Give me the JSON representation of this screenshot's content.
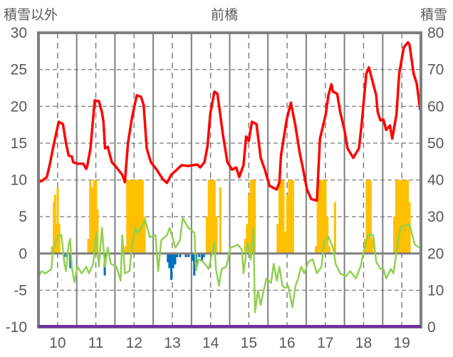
{
  "chart_data": {
    "type": "bar+line",
    "title": "前橋",
    "left_axis_label": "積雪以外",
    "right_axis_label": "積雪",
    "xlim": [
      9.5,
      19.5
    ],
    "ylim_left": [
      -10,
      30
    ],
    "ylim_right": [
      0,
      80
    ],
    "x_ticks": [
      "10",
      "11",
      "12",
      "13",
      "14",
      "15",
      "16",
      "17",
      "18",
      "19"
    ],
    "y_ticks_left": [
      "30",
      "25",
      "20",
      "15",
      "10",
      "5",
      "0",
      "-5",
      "-10"
    ],
    "y_ticks_right": [
      "80",
      "70",
      "60",
      "50",
      "40",
      "30",
      "20",
      "10",
      "0"
    ],
    "grid": true,
    "colors": {
      "red_line": "#ff0000",
      "green_line": "#92d050",
      "bar_positive": "#ffc000",
      "bar_negative": "#0070c0",
      "snow_line": "#7030a0",
      "axis": "#7f7f7f"
    },
    "series": [
      {
        "name": "red_line",
        "axis": "left",
        "points": [
          [
            9.5,
            9.7
          ],
          [
            9.6,
            9.9
          ],
          [
            9.72,
            10.4
          ],
          [
            9.8,
            12.2
          ],
          [
            9.88,
            14.3
          ],
          [
            9.95,
            16
          ],
          [
            10.03,
            17.9
          ],
          [
            10.14,
            17.6
          ],
          [
            10.22,
            15.0
          ],
          [
            10.29,
            13.3
          ],
          [
            10.37,
            13.2
          ],
          [
            10.41,
            12.4
          ],
          [
            10.52,
            12.2
          ],
          [
            10.67,
            12.2
          ],
          [
            10.75,
            11.5
          ],
          [
            10.78,
            12.0
          ],
          [
            10.86,
            14.3
          ],
          [
            10.97,
            20.8
          ],
          [
            11.08,
            20.7
          ],
          [
            11.16,
            19.2
          ],
          [
            11.2,
            17.9
          ],
          [
            11.24,
            14.3
          ],
          [
            11.31,
            14.5
          ],
          [
            11.42,
            12.4
          ],
          [
            11.54,
            11.7
          ],
          [
            11.69,
            10.7
          ],
          [
            11.76,
            9.7
          ],
          [
            11.84,
            15.0
          ],
          [
            11.95,
            18.6
          ],
          [
            12.07,
            21.5
          ],
          [
            12.18,
            21.3
          ],
          [
            12.25,
            20.2
          ],
          [
            12.33,
            14.3
          ],
          [
            12.44,
            12.4
          ],
          [
            12.59,
            11.4
          ],
          [
            12.75,
            10.1
          ],
          [
            12.86,
            9.6
          ],
          [
            12.97,
            10.7
          ],
          [
            13.12,
            11.4
          ],
          [
            13.24,
            12.0
          ],
          [
            13.42,
            11.9
          ],
          [
            13.65,
            12.1
          ],
          [
            13.73,
            11.7
          ],
          [
            13.84,
            12.4
          ],
          [
            13.92,
            14.6
          ],
          [
            13.99,
            18.9
          ],
          [
            14.1,
            22.0
          ],
          [
            14.18,
            21.7
          ],
          [
            14.33,
            15.9
          ],
          [
            14.44,
            12.4
          ],
          [
            14.56,
            11.4
          ],
          [
            14.67,
            11.7
          ],
          [
            14.75,
            10.4
          ],
          [
            14.86,
            12.0
          ],
          [
            14.93,
            15.9
          ],
          [
            15.0,
            15.3
          ],
          [
            15.08,
            17.9
          ],
          [
            15.2,
            17.6
          ],
          [
            15.31,
            13.0
          ],
          [
            15.42,
            11.4
          ],
          [
            15.54,
            9.2
          ],
          [
            15.73,
            8.7
          ],
          [
            15.8,
            9.7
          ],
          [
            15.84,
            13.3
          ],
          [
            15.99,
            18.2
          ],
          [
            16.1,
            20.5
          ],
          [
            16.22,
            17.3
          ],
          [
            16.33,
            13.7
          ],
          [
            16.41,
            11.7
          ],
          [
            16.52,
            8.7
          ],
          [
            16.63,
            7.4
          ],
          [
            16.78,
            7.2
          ],
          [
            16.86,
            15.6
          ],
          [
            17.01,
            18.9
          ],
          [
            17.08,
            21.5
          ],
          [
            17.16,
            23.0
          ],
          [
            17.2,
            22.0
          ],
          [
            17.31,
            21.7
          ],
          [
            17.39,
            19.2
          ],
          [
            17.5,
            16.8
          ],
          [
            17.58,
            14.3
          ],
          [
            17.73,
            13.0
          ],
          [
            17.88,
            14.3
          ],
          [
            17.95,
            17.6
          ],
          [
            18.07,
            24.4
          ],
          [
            18.14,
            25.3
          ],
          [
            18.33,
            21.5
          ],
          [
            18.37,
            19.2
          ],
          [
            18.44,
            18.1
          ],
          [
            18.52,
            18.2
          ],
          [
            18.59,
            16.8
          ],
          [
            18.69,
            17.4
          ],
          [
            18.75,
            15.6
          ],
          [
            18.86,
            18.9
          ],
          [
            18.93,
            24.4
          ],
          [
            19.05,
            28.0
          ],
          [
            19.16,
            28.7
          ],
          [
            19.2,
            28.4
          ],
          [
            19.31,
            24.4
          ],
          [
            19.39,
            23.1
          ],
          [
            19.48,
            19.5
          ]
        ]
      },
      {
        "name": "green_line",
        "axis": "left",
        "points": [
          [
            9.5,
            -3.2
          ],
          [
            9.58,
            -2.4
          ],
          [
            9.69,
            -2.7
          ],
          [
            9.76,
            -2.4
          ],
          [
            9.84,
            -2.1
          ],
          [
            9.88,
            0.5
          ],
          [
            9.95,
            1.5
          ],
          [
            10.03,
            2.5
          ],
          [
            10.1,
            2.5
          ],
          [
            10.18,
            -1.4
          ],
          [
            10.22,
            -2.4
          ],
          [
            10.29,
            1.2
          ],
          [
            10.33,
            2.0
          ],
          [
            10.37,
            -1.8
          ],
          [
            10.44,
            -3.9
          ],
          [
            10.52,
            -1.8
          ],
          [
            10.63,
            -2.7
          ],
          [
            10.75,
            -1.8
          ],
          [
            10.82,
            -2.7
          ],
          [
            10.93,
            -1.4
          ],
          [
            11.01,
            2.8
          ],
          [
            11.08,
            -1.8
          ],
          [
            11.16,
            3.5
          ],
          [
            11.24,
            -1.8
          ],
          [
            11.31,
            0.8
          ],
          [
            11.39,
            -1.4
          ],
          [
            11.54,
            -1.8
          ],
          [
            11.65,
            -3.7
          ],
          [
            11.69,
            2.5
          ],
          [
            11.76,
            -2.7
          ],
          [
            11.88,
            -2.4
          ],
          [
            11.95,
            1.2
          ],
          [
            12.03,
            3.5
          ],
          [
            12.1,
            2.8
          ],
          [
            12.22,
            3.8
          ],
          [
            12.29,
            4.6
          ],
          [
            12.41,
            2.2
          ],
          [
            12.56,
            2.5
          ],
          [
            12.63,
            -2.4
          ],
          [
            12.71,
            1.8
          ],
          [
            12.86,
            2.5
          ],
          [
            12.93,
            3.5
          ],
          [
            13.08,
            0.8
          ],
          [
            13.2,
            1.8
          ],
          [
            13.27,
            4.8
          ],
          [
            13.42,
            3.5
          ],
          [
            13.58,
            2.8
          ],
          [
            13.62,
            -2.3
          ],
          [
            13.69,
            -0.8
          ],
          [
            13.8,
            -1.1
          ],
          [
            13.95,
            -2.1
          ],
          [
            14.1,
            1.5
          ],
          [
            14.14,
            -2.1
          ],
          [
            14.22,
            -4.4
          ],
          [
            14.29,
            -2.1
          ],
          [
            14.41,
            -1.8
          ],
          [
            14.52,
            0.8
          ],
          [
            14.63,
            1.0
          ],
          [
            14.71,
            1.2
          ],
          [
            14.82,
            0.5
          ],
          [
            14.86,
            -2.7
          ],
          [
            14.97,
            1.5
          ],
          [
            15.05,
            -0.8
          ],
          [
            15.12,
            3.5
          ],
          [
            15.16,
            -8.0
          ],
          [
            15.24,
            -5.0
          ],
          [
            15.31,
            -7.0
          ],
          [
            15.39,
            -5.0
          ],
          [
            15.46,
            -3.4
          ],
          [
            15.58,
            -4.0
          ],
          [
            15.65,
            -1.4
          ],
          [
            15.73,
            -3.7
          ],
          [
            15.8,
            -1.8
          ],
          [
            15.88,
            -4.4
          ],
          [
            15.95,
            -4.7
          ],
          [
            16.03,
            -4.4
          ],
          [
            16.14,
            -7.3
          ],
          [
            16.22,
            -4.4
          ],
          [
            16.29,
            -3.4
          ],
          [
            16.37,
            -1.8
          ],
          [
            16.45,
            -2.7
          ],
          [
            16.56,
            -1.1
          ],
          [
            16.67,
            -0.8
          ],
          [
            16.78,
            -2.7
          ],
          [
            16.9,
            -1.8
          ],
          [
            16.97,
            1.5
          ],
          [
            17.08,
            2.3
          ],
          [
            17.2,
            0.8
          ],
          [
            17.27,
            -1.4
          ],
          [
            17.39,
            -2.7
          ],
          [
            17.54,
            -3.1
          ],
          [
            17.65,
            -2.4
          ],
          [
            17.8,
            -3.4
          ],
          [
            17.92,
            -1.8
          ],
          [
            18.07,
            1.8
          ],
          [
            18.14,
            2.6
          ],
          [
            18.25,
            2.5
          ],
          [
            18.33,
            -1.1
          ],
          [
            18.44,
            -2.1
          ],
          [
            18.52,
            -2.1
          ],
          [
            18.59,
            -3.4
          ],
          [
            18.71,
            -2.1
          ],
          [
            18.78,
            -2.7
          ],
          [
            18.9,
            1.5
          ],
          [
            18.97,
            3.6
          ],
          [
            19.08,
            3.8
          ],
          [
            19.2,
            4.0
          ],
          [
            19.26,
            2.8
          ],
          [
            19.34,
            1.2
          ],
          [
            19.46,
            0.8
          ]
        ]
      },
      {
        "name": "snow_line",
        "axis": "right",
        "points": [
          [
            9.5,
            0
          ],
          [
            19.5,
            0
          ]
        ]
      },
      {
        "name": "bars",
        "axis": "left",
        "bar_width": 0.05,
        "points": [
          [
            9.85,
            1
          ],
          [
            9.9,
            7
          ],
          [
            9.93,
            8
          ],
          [
            9.96,
            4
          ],
          [
            10.0,
            9
          ],
          [
            10.04,
            4
          ],
          [
            10.18,
            -0.5
          ],
          [
            10.25,
            -0.5
          ],
          [
            10.33,
            -2
          ],
          [
            10.8,
            2
          ],
          [
            10.85,
            10
          ],
          [
            10.9,
            9
          ],
          [
            10.95,
            10
          ],
          [
            11.0,
            10
          ],
          [
            11.04,
            6
          ],
          [
            11.23,
            -3
          ],
          [
            11.77,
            1
          ],
          [
            11.82,
            10
          ],
          [
            11.87,
            10
          ],
          [
            11.92,
            10
          ],
          [
            11.97,
            10
          ],
          [
            12.02,
            10
          ],
          [
            12.07,
            10
          ],
          [
            12.12,
            10
          ],
          [
            12.17,
            10
          ],
          [
            12.22,
            10
          ],
          [
            12.27,
            5
          ],
          [
            12.88,
            -1.2
          ],
          [
            12.92,
            -2
          ],
          [
            12.97,
            -3.6
          ],
          [
            13.02,
            -2
          ],
          [
            13.07,
            -1.5
          ],
          [
            13.12,
            -0.5
          ],
          [
            13.2,
            -0.5
          ],
          [
            13.35,
            -0.5
          ],
          [
            13.42,
            -0.5
          ],
          [
            13.52,
            -1
          ],
          [
            13.57,
            -3
          ],
          [
            13.62,
            -1.5
          ],
          [
            13.7,
            -0.5
          ],
          [
            13.77,
            -1
          ],
          [
            13.82,
            -0.5
          ],
          [
            13.9,
            5
          ],
          [
            13.95,
            10
          ],
          [
            14.0,
            10
          ],
          [
            14.05,
            10
          ],
          [
            14.1,
            10
          ],
          [
            14.15,
            5
          ],
          [
            14.25,
            9
          ],
          [
            14.9,
            2
          ],
          [
            14.95,
            4
          ],
          [
            15.0,
            8
          ],
          [
            15.05,
            10
          ],
          [
            15.1,
            10
          ],
          [
            15.15,
            10
          ],
          [
            15.75,
            4
          ],
          [
            15.8,
            10
          ],
          [
            15.85,
            10
          ],
          [
            15.9,
            10
          ],
          [
            15.95,
            3
          ],
          [
            16.0,
            8
          ],
          [
            16.05,
            10
          ],
          [
            16.1,
            10
          ],
          [
            16.15,
            10
          ],
          [
            16.75,
            1
          ],
          [
            16.8,
            10
          ],
          [
            16.85,
            10
          ],
          [
            16.9,
            10
          ],
          [
            16.95,
            10
          ],
          [
            17.0,
            10
          ],
          [
            17.05,
            5
          ],
          [
            17.1,
            1
          ],
          [
            17.25,
            7
          ],
          [
            18.03,
            2
          ],
          [
            18.08,
            10
          ],
          [
            18.13,
            10
          ],
          [
            18.18,
            10
          ],
          [
            18.23,
            2
          ],
          [
            18.8,
            5
          ],
          [
            18.85,
            10
          ],
          [
            18.9,
            10
          ],
          [
            18.95,
            10
          ],
          [
            19.0,
            10
          ],
          [
            19.05,
            10
          ],
          [
            19.1,
            10
          ],
          [
            19.15,
            10
          ],
          [
            19.2,
            7
          ]
        ]
      }
    ]
  }
}
